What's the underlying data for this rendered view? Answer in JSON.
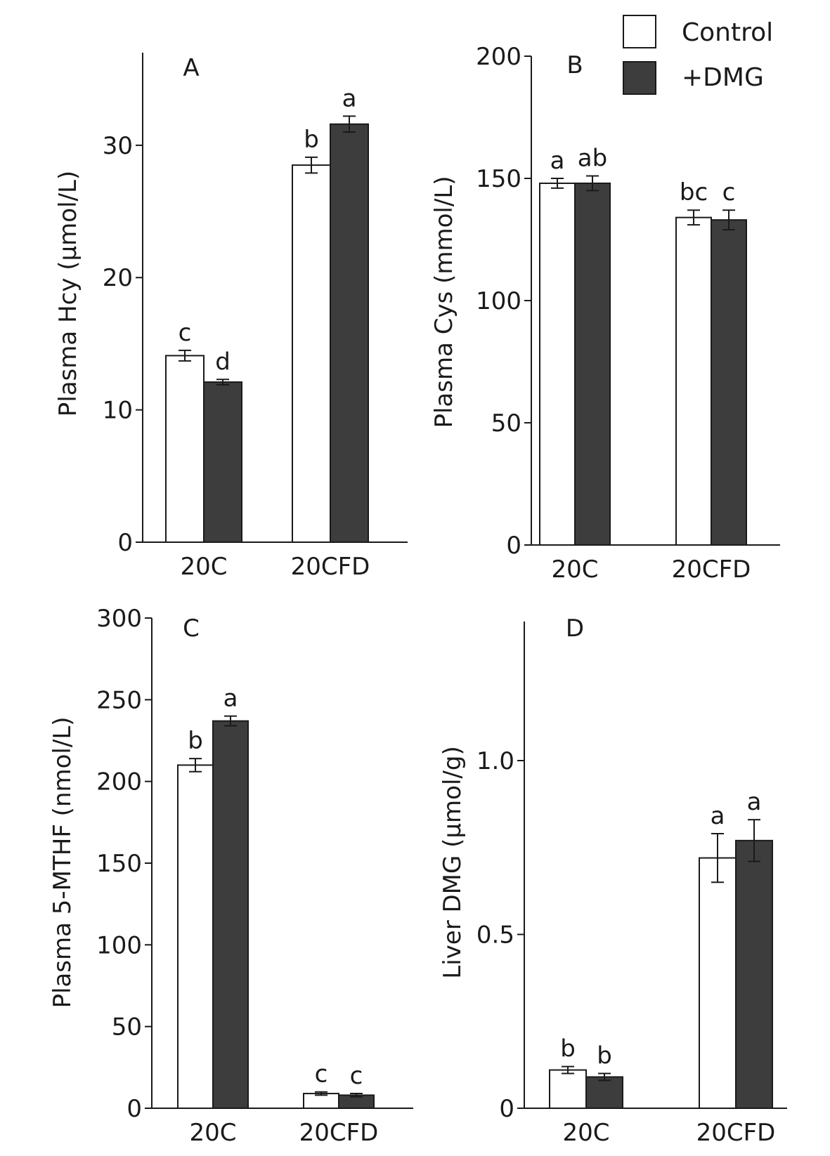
{
  "legend": {
    "items": [
      {
        "label": "Control",
        "color": "#ffffff"
      },
      {
        "label": "+DMG",
        "color": "#3d3d3d"
      }
    ]
  },
  "colors": {
    "control": "#ffffff",
    "dmg": "#3d3d3d",
    "axis": "#1a1a1a"
  },
  "chart_data": [
    {
      "panel": "A",
      "type": "bar",
      "ylabel": "Plasma Hcy (μmol/L)",
      "categories": [
        "20C",
        "20CFD"
      ],
      "ylim": [
        0,
        37
      ],
      "yticks": [
        0,
        10,
        20,
        30
      ],
      "ytick_labels": [
        "0",
        "10",
        "20",
        "30"
      ],
      "series": [
        {
          "name": "Control",
          "values": [
            14.1,
            28.5
          ],
          "errors": [
            0.4,
            0.6
          ],
          "letters": [
            "c",
            "b"
          ]
        },
        {
          "name": "+DMG",
          "values": [
            12.1,
            31.6
          ],
          "errors": [
            0.2,
            0.6
          ],
          "letters": [
            "d",
            "a"
          ]
        }
      ]
    },
    {
      "panel": "B",
      "type": "bar",
      "ylabel": "Plasma Cys (mmol/L)",
      "categories": [
        "20C",
        "20CFD"
      ],
      "ylim": [
        0,
        200
      ],
      "yticks": [
        0,
        50,
        100,
        150,
        200
      ],
      "ytick_labels": [
        "0",
        "50",
        "100",
        "150",
        "200"
      ],
      "series": [
        {
          "name": "Control",
          "values": [
            148,
            134
          ],
          "errors": [
            2,
            3
          ],
          "letters": [
            "a",
            "bc"
          ]
        },
        {
          "name": "+DMG",
          "values": [
            148,
            133
          ],
          "errors": [
            3,
            4
          ],
          "letters": [
            "ab",
            "c"
          ]
        }
      ]
    },
    {
      "panel": "C",
      "type": "bar",
      "ylabel": "Plasma 5-MTHF (nmol/L)",
      "categories": [
        "20C",
        "20CFD"
      ],
      "ylim": [
        0,
        300
      ],
      "yticks": [
        0,
        50,
        100,
        150,
        200,
        250,
        300
      ],
      "ytick_labels": [
        "0",
        "50",
        "100",
        "150",
        "200",
        "250",
        "300"
      ],
      "series": [
        {
          "name": "Control",
          "values": [
            210,
            9
          ],
          "errors": [
            4,
            1
          ],
          "letters": [
            "b",
            "c"
          ]
        },
        {
          "name": "+DMG",
          "values": [
            237,
            8
          ],
          "errors": [
            3,
            1
          ],
          "letters": [
            "a",
            "c"
          ]
        }
      ]
    },
    {
      "panel": "D",
      "type": "bar",
      "ylabel": "Liver DMG (μmol/g)",
      "categories": [
        "20C",
        "20CFD"
      ],
      "ylim": [
        0,
        1.4
      ],
      "yticks": [
        0,
        0.5,
        1.0
      ],
      "ytick_labels": [
        "0",
        "0.5",
        "1.0"
      ],
      "series": [
        {
          "name": "Control",
          "values": [
            0.11,
            0.72
          ],
          "errors": [
            0.01,
            0.07
          ],
          "letters": [
            "b",
            "a"
          ]
        },
        {
          "name": "+DMG",
          "values": [
            0.09,
            0.77
          ],
          "errors": [
            0.01,
            0.06
          ],
          "letters": [
            "b",
            "a"
          ]
        }
      ]
    }
  ]
}
